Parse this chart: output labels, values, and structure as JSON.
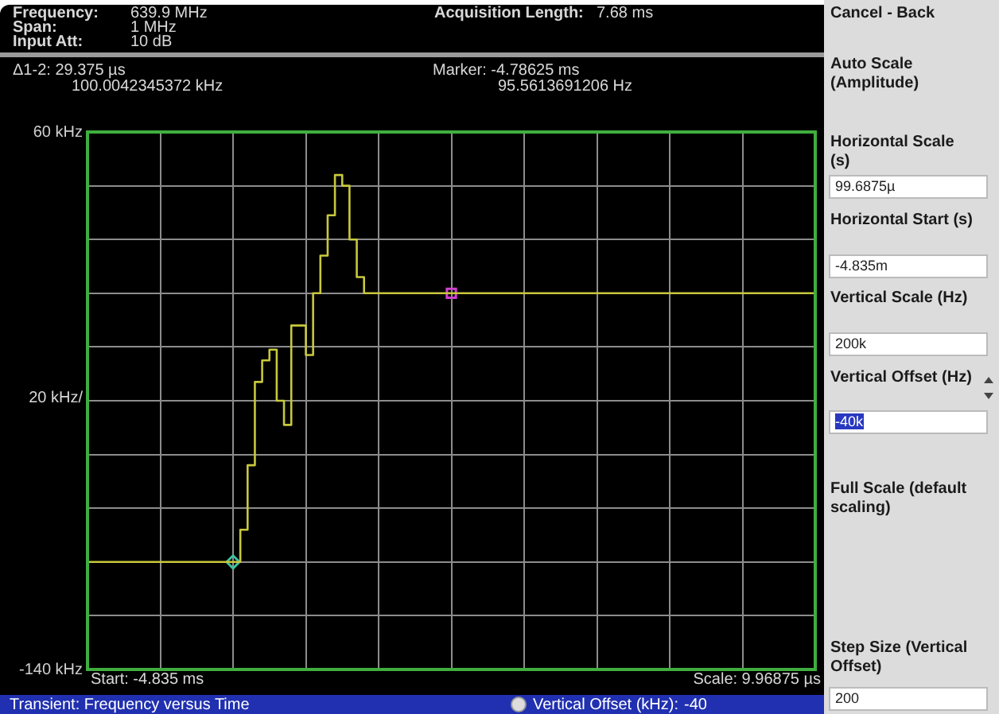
{
  "chart_data": {
    "type": "step",
    "categories": [
      null,
      null,
      null,
      null,
      null,
      null,
      null,
      null,
      null,
      null,
      null,
      null,
      null,
      null,
      null,
      null,
      null,
      null,
      null,
      null,
      null,
      null,
      null,
      null,
      null,
      null,
      null,
      null,
      null,
      null,
      null,
      null,
      null,
      null,
      null,
      null,
      null,
      null,
      null,
      null,
      null,
      null,
      null,
      null,
      null,
      null,
      null,
      null,
      null,
      null,
      null,
      null,
      null,
      null,
      null,
      null,
      null,
      null,
      null,
      null,
      null,
      null,
      null,
      null,
      null,
      null,
      null,
      null,
      null,
      null,
      null,
      null,
      null,
      null,
      null,
      null,
      null,
      null,
      null,
      null,
      null,
      null,
      null,
      null,
      null,
      null,
      null,
      null,
      null,
      null,
      null,
      null,
      null,
      null,
      null,
      null,
      null,
      null,
      null,
      null,
      null
    ],
    "series": [
      {
        "type": "step",
        "color": "#c8c83c",
        "marker": "none",
        "values": [
          -100,
          -100,
          -100,
          -100,
          -100,
          -100,
          -100,
          -100,
          -100,
          -100,
          -100,
          -100,
          -100,
          -100,
          -100,
          -100,
          -100,
          -100,
          -100,
          -100,
          -100,
          -88,
          -64,
          -33,
          -25,
          -21,
          -40,
          -49,
          -12,
          -12,
          -23,
          0,
          14,
          29,
          44,
          40,
          20,
          6,
          0,
          0,
          0,
          0,
          0,
          0,
          0,
          0,
          0,
          0,
          0,
          0,
          0,
          0,
          0,
          0,
          0,
          0,
          0,
          0,
          0,
          0,
          0,
          0,
          0,
          0,
          0,
          0,
          0,
          0,
          0,
          0,
          0,
          0,
          0,
          0,
          0,
          0,
          0,
          0,
          0,
          0,
          0,
          0,
          0,
          0,
          0,
          0,
          0,
          0,
          0,
          0,
          0,
          0,
          0,
          0,
          0,
          0,
          0,
          0,
          0,
          0,
          0
        ]
      },
      {
        "type": "scatter",
        "color": "#d040d0",
        "marker": "square",
        "values": [
          null,
          null,
          null,
          null,
          null,
          null,
          null,
          null,
          null,
          null,
          null,
          null,
          null,
          null,
          null,
          null,
          null,
          null,
          null,
          null,
          null,
          null,
          null,
          null,
          null,
          null,
          null,
          null,
          null,
          null,
          null,
          null,
          null,
          null,
          null,
          null,
          null,
          null,
          null,
          null,
          null,
          null,
          null,
          null,
          null,
          null,
          null,
          null,
          null,
          null,
          0,
          null,
          null,
          null,
          null,
          null,
          null,
          null,
          null,
          null,
          null,
          null,
          null,
          null,
          null,
          null,
          null,
          null,
          null,
          null,
          null,
          null,
          null,
          null,
          null,
          null,
          null,
          null,
          null,
          null,
          null,
          null,
          null,
          null,
          null,
          null,
          null,
          null,
          null,
          null,
          null,
          null,
          null,
          null,
          null,
          null,
          null,
          null,
          null,
          null,
          null
        ]
      },
      {
        "type": "scatter",
        "color": "#40c0a0",
        "marker": "diamond",
        "values": [
          null,
          null,
          null,
          null,
          null,
          null,
          null,
          null,
          null,
          null,
          null,
          null,
          null,
          null,
          null,
          null,
          null,
          null,
          null,
          null,
          -100,
          null,
          null,
          null,
          null,
          null,
          null,
          null,
          null,
          null,
          null,
          null,
          null,
          null,
          null,
          null,
          null,
          null,
          null,
          null,
          null,
          null,
          null,
          null,
          null,
          null,
          null,
          null,
          null,
          null,
          null,
          null,
          null,
          null,
          null,
          null,
          null,
          null,
          null,
          null,
          null,
          null,
          null,
          null,
          null,
          null,
          null,
          null,
          null,
          null,
          null,
          null,
          null,
          null,
          null,
          null,
          null,
          null,
          null,
          null,
          null,
          null,
          null,
          null,
          null,
          null,
          null,
          null,
          null,
          null,
          null,
          null,
          null,
          null,
          null,
          null,
          null,
          null,
          null,
          null,
          null
        ]
      }
    ],
    "ylim": [
      -140,
      60
    ],
    "yticks": [
      {
        "value": 60,
        "label": "60 kHz"
      },
      {
        "value": 40,
        "label": null
      },
      {
        "value": 20,
        "label": null
      },
      {
        "value": 0,
        "label": null
      },
      {
        "value": -20,
        "label": null
      },
      {
        "value": -40,
        "label": null
      },
      {
        "value": -60,
        "label": null
      },
      {
        "value": -80,
        "label": null
      },
      {
        "value": -100,
        "label": null
      },
      {
        "value": -120,
        "label": null
      },
      {
        "value": -140,
        "label": "-140 kHz"
      }
    ],
    "grid": true,
    "legend": false,
    "tick_labels": "y",
    "annotations": [
      "Frequency:",
      "639.9 MHz",
      "Span:",
      "1 MHz",
      "Input Att:",
      "10 dB",
      "Acquisition Length:",
      "7.68 ms",
      "Δ1-2: 29.375 µs",
      "100.0042345372 kHz",
      "Marker: -4.78625 ms",
      "95.5613691206 Hz",
      "Start: -4.835 ms",
      "Scale: 9.96875 µs",
      "Transient: Frequency versus Time",
      "Vertical Offset (kHz):",
      "-40",
      "Cancel - Back",
      "Auto Scale (Amplitude)",
      "Horizontal Scale (s)",
      "99.6875µ",
      "Horizontal Start (s)",
      "-4.835m",
      "Vertical Scale (Hz)",
      "200k",
      "Vertical Offset (Hz)",
      "-40k",
      "Full Scale (default scaling)",
      "Step Size (Vertical Offset)",
      "200"
    ],
    "ylabel": "20 kHz/"
  }
}
